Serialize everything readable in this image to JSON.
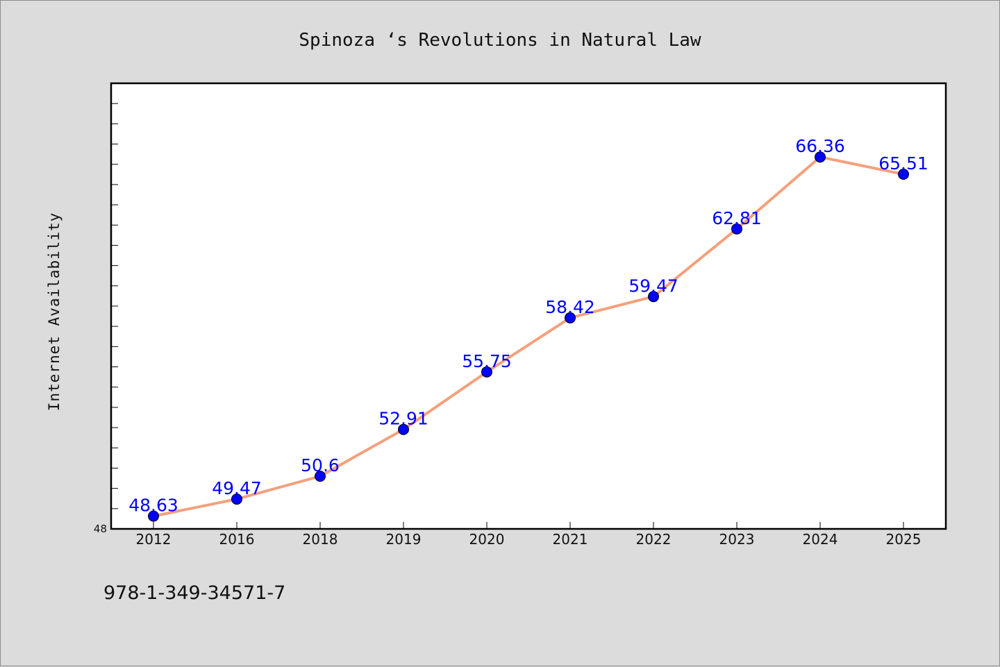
{
  "chart_data": {
    "type": "line",
    "title": "Spinoza ‘s Revolutions in Natural Law",
    "xlabel": "",
    "ylabel": "Internet Availability",
    "categories": [
      "2012",
      "2016",
      "2018",
      "2019",
      "2020",
      "2021",
      "2022",
      "2023",
      "2024",
      "2025"
    ],
    "series": [
      {
        "values": [
          48.63,
          49.47,
          50.6,
          52.91,
          55.75,
          58.42,
          59.47,
          62.81,
          66.36,
          65.51
        ],
        "labels": [
          "48.63",
          "49.47",
          "50.6",
          "52.91",
          "55.75",
          "58.42",
          "59.47",
          "62.81",
          "66.36",
          "65.51"
        ]
      }
    ],
    "ylim": [
      48,
      70
    ],
    "y_tick_labels": [
      "48"
    ],
    "grid": false,
    "colors": {
      "line": "#f4a07c",
      "marker": "#0000ff",
      "data_label": "#0000ff",
      "plot_background": "#ffffff",
      "page_background": "#dcdcdc"
    }
  },
  "footer": {
    "isbn": "978-1-349-34571-7"
  }
}
